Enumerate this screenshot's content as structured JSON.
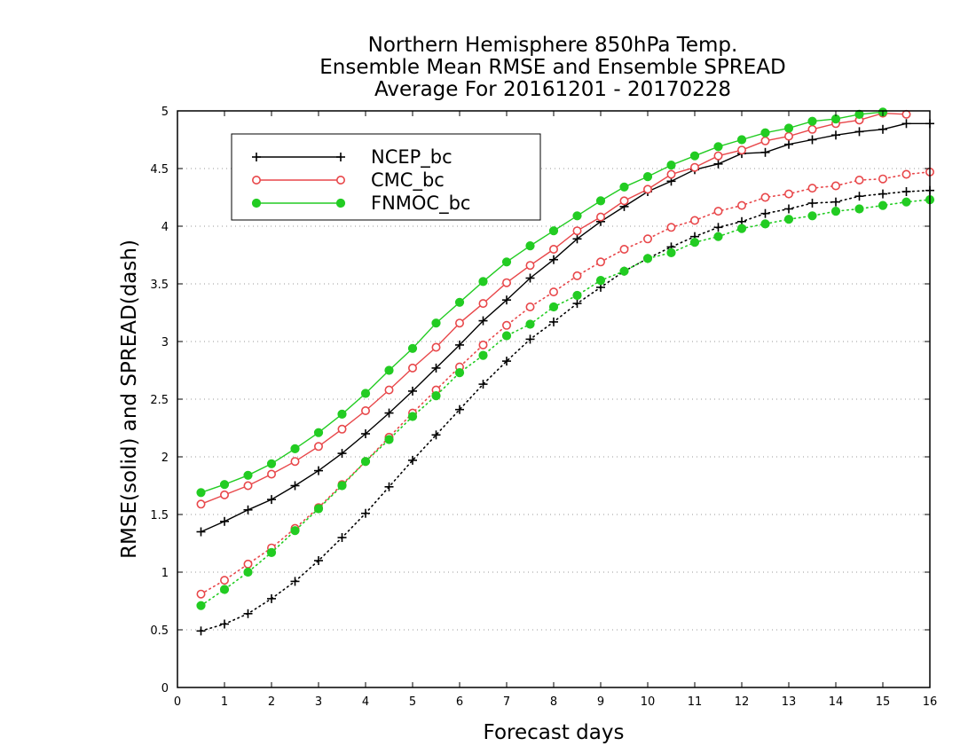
{
  "chart_data": {
    "type": "line",
    "title_lines": [
      "Northern Hemisphere 850hPa Temp.",
      "Ensemble Mean RMSE and Ensemble SPREAD",
      "Average For 20161201 - 20170228"
    ],
    "xlabel": "Forecast days",
    "ylabel": "RMSE(solid) and SPREAD(dash)",
    "xlim": [
      0,
      16
    ],
    "ylim": [
      0,
      5
    ],
    "x_ticks": [
      "0",
      "1",
      "2",
      "3",
      "4",
      "5",
      "6",
      "7",
      "8",
      "9",
      "10",
      "11",
      "12",
      "13",
      "14",
      "15",
      "16"
    ],
    "y_ticks": [
      "0",
      "0.5",
      "1",
      "1.5",
      "2",
      "2.5",
      "3",
      "3.5",
      "4",
      "4.5",
      "5"
    ],
    "grid": "horizontal-dotted",
    "legend_position": "top-left",
    "x": [
      0.5,
      1,
      1.5,
      2,
      2.5,
      3,
      3.5,
      4,
      4.5,
      5,
      5.5,
      6,
      6.5,
      7,
      7.5,
      8,
      8.5,
      9,
      9.5,
      10,
      10.5,
      11,
      11.5,
      12,
      12.5,
      13,
      13.5,
      14,
      14.5,
      15,
      15.5,
      16
    ],
    "series": [
      {
        "name": "NCEP_bc",
        "color": "#000000",
        "marker": "plus",
        "rmse": [
          1.35,
          1.44,
          1.54,
          1.63,
          1.75,
          1.88,
          2.03,
          2.2,
          2.38,
          2.57,
          2.77,
          2.97,
          3.18,
          3.36,
          3.55,
          3.71,
          3.89,
          4.04,
          4.17,
          4.3,
          4.39,
          4.49,
          4.54,
          4.63,
          4.64,
          4.71,
          4.75,
          4.79,
          4.82,
          4.84,
          4.89,
          4.89
        ],
        "spread": [
          0.49,
          0.55,
          0.64,
          0.77,
          0.92,
          1.1,
          1.3,
          1.51,
          1.74,
          1.97,
          2.19,
          2.41,
          2.63,
          2.83,
          3.02,
          3.17,
          3.33,
          3.47,
          3.61,
          3.72,
          3.82,
          3.91,
          3.99,
          4.04,
          4.11,
          4.15,
          4.2,
          4.21,
          4.26,
          4.28,
          4.3,
          4.31
        ]
      },
      {
        "name": "CMC_bc",
        "color": "#e8474a",
        "marker": "open-circle",
        "rmse": [
          1.59,
          1.67,
          1.75,
          1.85,
          1.96,
          2.09,
          2.24,
          2.4,
          2.58,
          2.77,
          2.95,
          3.16,
          3.33,
          3.51,
          3.66,
          3.8,
          3.96,
          4.08,
          4.22,
          4.32,
          4.45,
          4.51,
          4.61,
          4.66,
          4.74,
          4.78,
          4.84,
          4.89,
          4.92,
          4.98,
          4.97,
          null
        ],
        "spread": [
          0.81,
          0.93,
          1.07,
          1.21,
          1.38,
          1.56,
          1.76,
          1.96,
          2.17,
          2.38,
          2.58,
          2.78,
          2.97,
          3.14,
          3.3,
          3.43,
          3.57,
          3.69,
          3.8,
          3.89,
          3.99,
          4.05,
          4.13,
          4.18,
          4.25,
          4.28,
          4.33,
          4.35,
          4.4,
          4.41,
          4.45,
          4.47
        ]
      },
      {
        "name": "FNMOC_bc",
        "color": "#22cc22",
        "marker": "filled-circle",
        "rmse": [
          1.69,
          1.76,
          1.84,
          1.94,
          2.07,
          2.21,
          2.37,
          2.55,
          2.75,
          2.94,
          3.16,
          3.34,
          3.52,
          3.69,
          3.83,
          3.96,
          4.09,
          4.22,
          4.34,
          4.43,
          4.53,
          4.61,
          4.69,
          4.75,
          4.81,
          4.85,
          4.91,
          4.93,
          4.97,
          4.99,
          null,
          null
        ],
        "spread": [
          0.71,
          0.85,
          1.0,
          1.17,
          1.36,
          1.55,
          1.75,
          1.96,
          2.15,
          2.35,
          2.53,
          2.73,
          2.88,
          3.05,
          3.15,
          3.3,
          3.4,
          3.53,
          3.61,
          3.72,
          3.77,
          3.86,
          3.91,
          3.98,
          4.02,
          4.06,
          4.09,
          4.13,
          4.15,
          4.18,
          4.21,
          4.23
        ]
      }
    ]
  }
}
